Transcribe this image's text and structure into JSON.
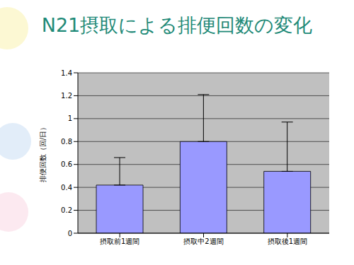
{
  "chart_data": {
    "type": "bar",
    "title": "N21摂取による排便回数の変化",
    "y_label": "排便回数（回/日）",
    "categories": [
      "摂取前1週間",
      "摂取中2週間",
      "摂取後1週間"
    ],
    "values": [
      0.42,
      0.8,
      0.54
    ],
    "error": [
      0.24,
      0.41,
      0.43
    ],
    "color": "#9999ff",
    "ylim": [
      0,
      1.4
    ],
    "yticks": [
      0,
      0.2,
      0.4,
      0.6,
      0.8,
      1,
      1.2,
      1.4
    ],
    "grid": true
  }
}
